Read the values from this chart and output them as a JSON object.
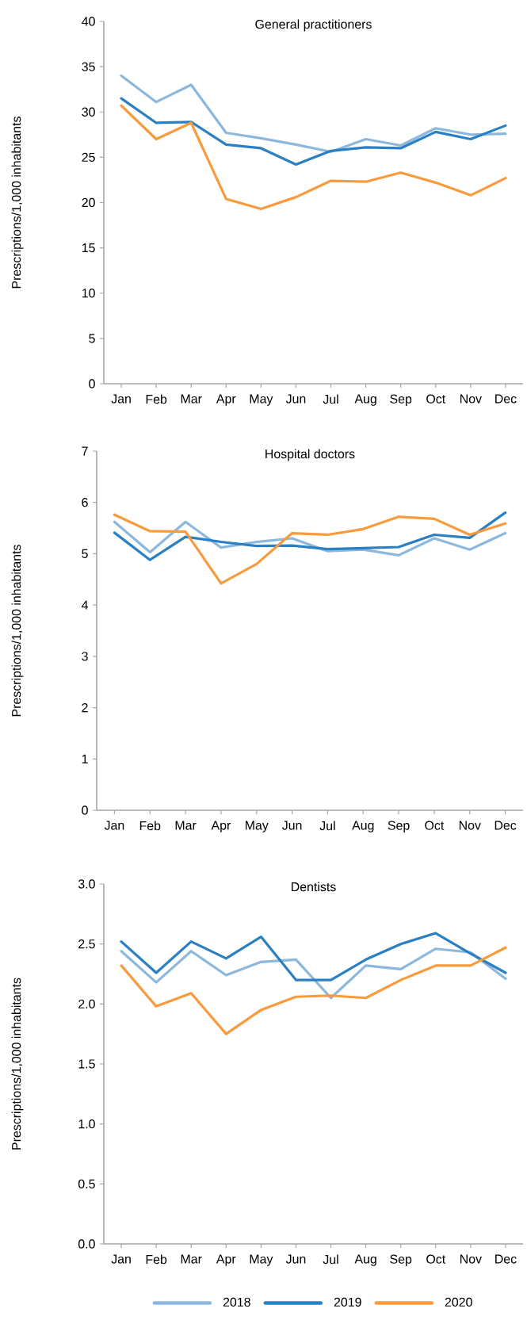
{
  "chart_data": [
    {
      "type": "line",
      "title": "General practitioners",
      "ylabel": "Prescriptions/1,000 inhabitants",
      "categories": [
        "Jan",
        "Feb",
        "Mar",
        "Apr",
        "May",
        "Jun",
        "Jul",
        "Aug",
        "Sep",
        "Oct",
        "Nov",
        "Dec"
      ],
      "ylim": [
        0,
        40
      ],
      "yticks": [
        0,
        5,
        10,
        15,
        20,
        25,
        30,
        35,
        40
      ],
      "series": [
        {
          "color": "#8db8de",
          "values": [
            34,
            31.1,
            33,
            27.7,
            27.1,
            26.4,
            25.6,
            27,
            26.3,
            28.2,
            27.5,
            27.6
          ]
        },
        {
          "color": "#2a80c2",
          "values": [
            31.5,
            28.8,
            28.9,
            26.4,
            26,
            24.2,
            25.7,
            26.1,
            26,
            27.8,
            27,
            28.5
          ]
        },
        {
          "color": "#f99a3c",
          "values": [
            30.7,
            27,
            28.8,
            20.4,
            19.3,
            20.6,
            22.4,
            22.3,
            23.3,
            22.2,
            20.8,
            22.7
          ]
        }
      ]
    },
    {
      "type": "line",
      "title": "Hospital doctors",
      "ylabel": "Prescriptions/1,000 inhabitants",
      "categories": [
        "Jan",
        "Feb",
        "Mar",
        "Apr",
        "May",
        "Jun",
        "Jul",
        "Aug",
        "Sep",
        "Oct",
        "Nov",
        "Dec"
      ],
      "ylim": [
        0,
        7
      ],
      "yticks": [
        0,
        1,
        2,
        3,
        4,
        5,
        6,
        7
      ],
      "series": [
        {
          "color": "#8db8de",
          "values": [
            5.62,
            5.03,
            5.62,
            5.12,
            5.23,
            5.3,
            5.05,
            5.08,
            4.97,
            5.3,
            5.08,
            5.4
          ]
        },
        {
          "color": "#2a80c2",
          "values": [
            5.41,
            4.88,
            5.33,
            5.23,
            5.15,
            5.16,
            5.09,
            5.11,
            5.13,
            5.37,
            5.31,
            5.8
          ]
        },
        {
          "color": "#f99a3c",
          "values": [
            5.76,
            5.44,
            5.43,
            4.42,
            4.8,
            5.4,
            5.37,
            5.48,
            5.72,
            5.68,
            5.37,
            5.59
          ]
        }
      ]
    },
    {
      "type": "line",
      "title": "Dentists",
      "ylabel": "Prescriptions/1,000 inhabitants",
      "categories": [
        "Jan",
        "Feb",
        "Mar",
        "Apr",
        "May",
        "Jun",
        "Jul",
        "Aug",
        "Sep",
        "Oct",
        "Nov",
        "Dec"
      ],
      "ylim": [
        0,
        3
      ],
      "yticks": [
        {
          "value": 0,
          "label": "0.0"
        },
        {
          "value": 0.5,
          "label": "0.5"
        },
        {
          "value": 1,
          "label": "1.0"
        },
        {
          "value": 1.5,
          "label": "1.5"
        },
        {
          "value": 2,
          "label": "2.0"
        },
        {
          "value": 2.5,
          "label": "2.5"
        },
        {
          "value": 3,
          "label": "3.0"
        }
      ],
      "legend": "bottom",
      "series": [
        {
          "name": "2018",
          "color": "#8db8de",
          "values": [
            2.44,
            2.18,
            2.44,
            2.24,
            2.35,
            2.37,
            2.05,
            2.32,
            2.29,
            2.46,
            2.43,
            2.21
          ]
        },
        {
          "name": "2019",
          "color": "#2a80c2",
          "values": [
            2.52,
            2.26,
            2.52,
            2.38,
            2.56,
            2.2,
            2.2,
            2.37,
            2.5,
            2.59,
            2.42,
            2.26
          ]
        },
        {
          "name": "2020",
          "color": "#f99a3c",
          "values": [
            2.32,
            1.98,
            2.09,
            1.75,
            1.95,
            2.06,
            2.07,
            2.05,
            2.2,
            2.32,
            2.32,
            2.47
          ]
        }
      ]
    }
  ]
}
